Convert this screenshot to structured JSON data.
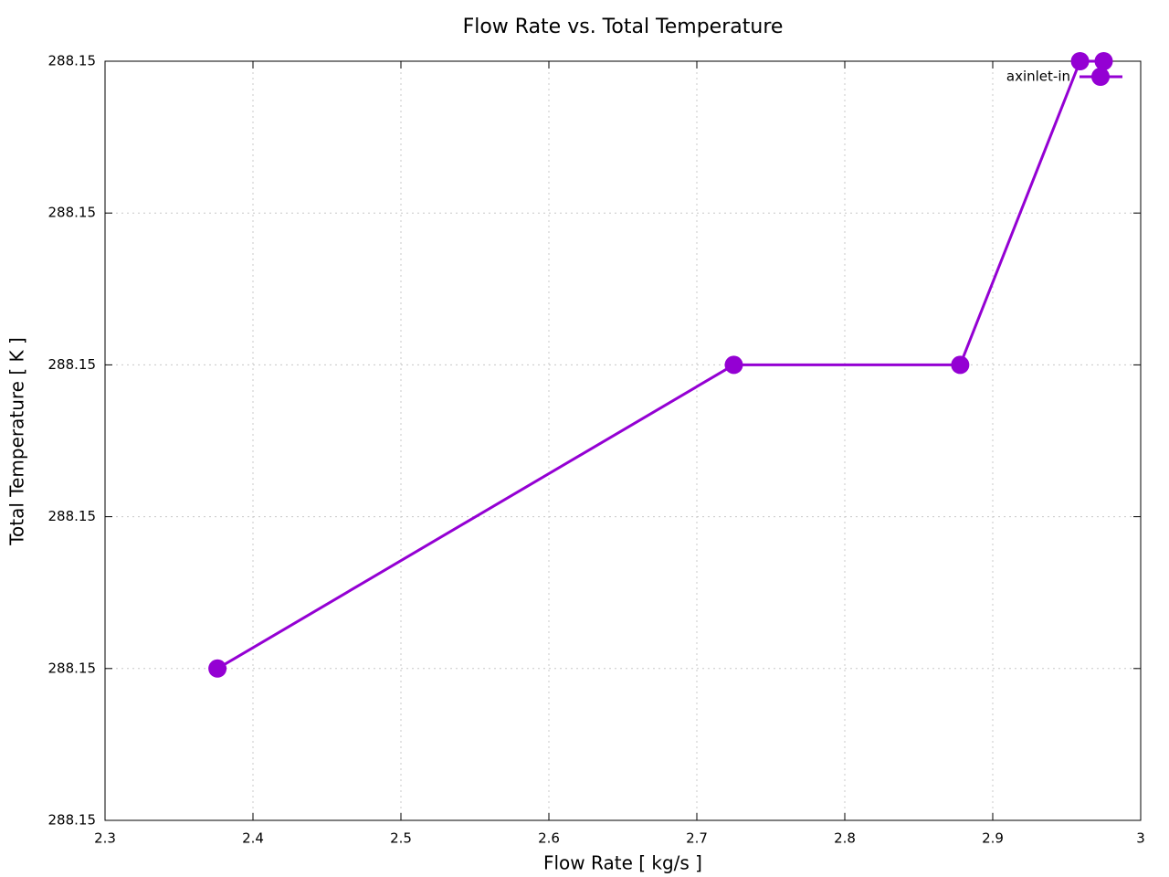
{
  "chart_data": {
    "type": "line",
    "title": "Flow Rate vs. Total Temperature",
    "x_label": "Flow Rate [ kg/s ]",
    "y_label": "Total Temperature [ K ]",
    "x": [
      2.376,
      2.725,
      2.878,
      2.959,
      2.975
    ],
    "series": [
      {
        "name": "axinlet-in",
        "color": "#9400d3",
        "values": [
          288.149997,
          288.150001,
          288.150001,
          288.150005,
          288.150005
        ]
      }
    ],
    "xlim": [
      2.3,
      3
    ],
    "xticks": [
      2.3,
      2.4,
      2.5,
      2.6,
      2.7,
      2.8,
      2.9,
      3
    ],
    "ylim": [
      288.149995,
      288.150005
    ],
    "yticks": [
      {
        "value": 288.149995,
        "label": "288.15"
      },
      {
        "value": 288.149997,
        "label": "288.15"
      },
      {
        "value": 288.149999,
        "label": "288.15"
      },
      {
        "value": 288.150001,
        "label": "288.15"
      },
      {
        "value": 288.150003,
        "label": "288.15"
      },
      {
        "value": 288.150005,
        "label": "288.15"
      }
    ],
    "grid": true,
    "legend": "top-right"
  }
}
